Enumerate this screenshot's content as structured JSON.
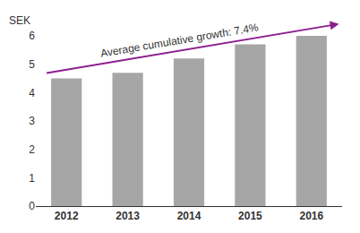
{
  "chart_data": {
    "type": "bar",
    "y_label": "SEK",
    "annotations": [
      "Average cumulative growth: 7.4%"
    ],
    "categories": [
      "2012",
      "2013",
      "2014",
      "2015",
      "2016"
    ],
    "values": [
      4.5,
      4.7,
      5.2,
      5.7,
      6.0
    ],
    "color": "#a6a6a6",
    "ylim": [
      0,
      6
    ],
    "yticks": [
      0,
      1,
      2,
      3,
      4,
      5,
      6
    ],
    "grid": false
  }
}
